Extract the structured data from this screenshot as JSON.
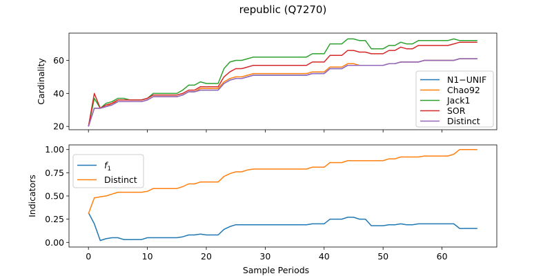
{
  "figure_title": "republic (Q7270)",
  "colors": {
    "blue": "#1f77b4",
    "orange": "#ff7f0e",
    "green": "#2ca02c",
    "red": "#d62728",
    "purple": "#9467bd"
  },
  "chart_data": [
    {
      "type": "line",
      "xlabel": "",
      "ylabel": "Cardinality",
      "xlim": [
        -3.3,
        69.3
      ],
      "ylim": [
        18,
        76.5
      ],
      "xticks": [
        0,
        10,
        20,
        30,
        40,
        50,
        60
      ],
      "yticks": [
        20,
        40,
        60
      ],
      "legend_position": "right",
      "x": [
        0,
        1,
        2,
        3,
        4,
        5,
        6,
        7,
        8,
        9,
        10,
        11,
        12,
        13,
        14,
        15,
        16,
        17,
        18,
        19,
        20,
        21,
        22,
        23,
        24,
        25,
        26,
        27,
        28,
        29,
        30,
        31,
        32,
        33,
        34,
        35,
        36,
        37,
        38,
        39,
        40,
        41,
        42,
        43,
        44,
        45,
        46,
        47,
        48,
        49,
        50,
        51,
        52,
        53,
        54,
        55,
        56,
        57,
        58,
        59,
        60,
        61,
        62,
        63,
        64,
        65,
        66
      ],
      "series": [
        {
          "name": "N1−UNIF",
          "color_key": "blue",
          "values": [
            20,
            31,
            31,
            32,
            33,
            35,
            35,
            35,
            35,
            35,
            36,
            38,
            38,
            38,
            38,
            38,
            39,
            41,
            41,
            42,
            42,
            42,
            42,
            46,
            48,
            49,
            49,
            50,
            51,
            51,
            51,
            51,
            51,
            51,
            51,
            51,
            51,
            51,
            52,
            52,
            52,
            55,
            55,
            55,
            57,
            57,
            57,
            57,
            57,
            57,
            57,
            58,
            58,
            59,
            59,
            59,
            59,
            60,
            60,
            60,
            60,
            60,
            60,
            61,
            61,
            61,
            61
          ]
        },
        {
          "name": "Chao92",
          "color_key": "orange",
          "values": [
            20,
            31,
            31,
            32,
            34,
            35,
            35,
            35,
            35,
            35,
            36,
            38,
            38,
            38,
            38,
            38,
            39,
            41,
            41,
            43,
            43,
            43,
            43,
            47,
            49,
            50,
            50,
            51,
            52,
            52,
            52,
            52,
            52,
            52,
            52,
            52,
            52,
            52,
            53,
            53,
            53,
            56,
            56,
            56,
            58,
            58,
            57,
            57,
            57,
            57,
            57,
            58,
            58,
            59,
            59,
            59,
            59,
            60,
            60,
            60,
            60,
            60,
            60,
            61,
            61,
            61,
            61
          ]
        },
        {
          "name": "Jack1",
          "color_key": "green",
          "values": [
            20,
            37,
            31,
            34,
            35,
            37,
            37,
            36,
            36,
            36,
            37,
            40,
            40,
            40,
            40,
            40,
            42,
            45,
            45,
            47,
            46,
            46,
            46,
            55,
            59,
            60,
            60,
            61,
            62,
            62,
            62,
            62,
            62,
            62,
            62,
            62,
            62,
            62,
            64,
            64,
            64,
            70,
            70,
            70,
            73,
            73,
            72,
            72,
            67,
            67,
            67,
            69,
            69,
            71,
            70,
            70,
            72,
            72,
            72,
            72,
            72,
            72,
            73,
            72,
            72,
            72,
            72
          ]
        },
        {
          "name": "SOR",
          "color_key": "red",
          "values": [
            20,
            40,
            31,
            33,
            34,
            36,
            36,
            36,
            36,
            36,
            37,
            39,
            39,
            39,
            39,
            39,
            40,
            42,
            42,
            44,
            44,
            44,
            44,
            50,
            53,
            55,
            55,
            56,
            57,
            57,
            57,
            57,
            57,
            57,
            57,
            57,
            57,
            57,
            59,
            59,
            59,
            63,
            63,
            63,
            66,
            66,
            65,
            65,
            64,
            64,
            64,
            66,
            66,
            68,
            67,
            67,
            69,
            69,
            69,
            69,
            69,
            69,
            70,
            71,
            71,
            71,
            71
          ]
        },
        {
          "name": "Distinct",
          "color_key": "purple",
          "values": [
            20,
            31,
            31,
            32,
            33,
            35,
            35,
            35,
            35,
            35,
            36,
            38,
            38,
            38,
            38,
            38,
            39,
            41,
            41,
            42,
            42,
            42,
            42,
            46,
            48,
            49,
            49,
            50,
            51,
            51,
            51,
            51,
            51,
            51,
            51,
            51,
            51,
            51,
            52,
            52,
            52,
            55,
            55,
            55,
            57,
            57,
            57,
            57,
            57,
            57,
            57,
            58,
            58,
            59,
            59,
            59,
            59,
            60,
            60,
            60,
            60,
            60,
            60,
            61,
            61,
            61,
            61
          ]
        }
      ]
    },
    {
      "type": "line",
      "xlabel": "Sample Periods",
      "ylabel": "Indicators",
      "xlim": [
        -3.3,
        69.3
      ],
      "ylim": [
        -0.05,
        1.05
      ],
      "xticks": [
        0,
        10,
        20,
        30,
        40,
        50,
        60
      ],
      "yticks": [
        0.0,
        0.25,
        0.5,
        0.75,
        1.0
      ],
      "ytick_labels": [
        "0.00",
        "0.25",
        "0.50",
        "0.75",
        "1.00"
      ],
      "xtick_labels": [
        "0",
        "10",
        "20",
        "30",
        "40",
        "50",
        "60"
      ],
      "legend_position": "top-left",
      "legend_f1_base": "f",
      "legend_f1_sub": "1",
      "x": [
        0,
        1,
        2,
        3,
        4,
        5,
        6,
        7,
        8,
        9,
        10,
        11,
        12,
        13,
        14,
        15,
        16,
        17,
        18,
        19,
        20,
        21,
        22,
        23,
        24,
        25,
        26,
        27,
        28,
        29,
        30,
        31,
        32,
        33,
        34,
        35,
        36,
        37,
        38,
        39,
        40,
        41,
        42,
        43,
        44,
        45,
        46,
        47,
        48,
        49,
        50,
        51,
        52,
        53,
        54,
        55,
        56,
        57,
        58,
        59,
        60,
        61,
        62,
        63,
        64,
        65,
        66
      ],
      "series": [
        {
          "name": "f_1",
          "color_key": "blue",
          "values": [
            0.32,
            0.2,
            0.02,
            0.04,
            0.05,
            0.05,
            0.03,
            0.03,
            0.03,
            0.03,
            0.05,
            0.05,
            0.05,
            0.05,
            0.05,
            0.05,
            0.06,
            0.08,
            0.08,
            0.09,
            0.08,
            0.08,
            0.08,
            0.14,
            0.17,
            0.19,
            0.19,
            0.19,
            0.19,
            0.19,
            0.19,
            0.19,
            0.19,
            0.19,
            0.19,
            0.19,
            0.19,
            0.19,
            0.2,
            0.2,
            0.2,
            0.25,
            0.25,
            0.25,
            0.27,
            0.27,
            0.25,
            0.25,
            0.18,
            0.18,
            0.18,
            0.19,
            0.19,
            0.2,
            0.19,
            0.19,
            0.2,
            0.2,
            0.2,
            0.2,
            0.2,
            0.2,
            0.2,
            0.15,
            0.15,
            0.15,
            0.15
          ]
        },
        {
          "name": "Distinct",
          "color_key": "orange",
          "values": [
            0.31,
            0.48,
            0.49,
            0.5,
            0.52,
            0.54,
            0.54,
            0.54,
            0.54,
            0.54,
            0.55,
            0.58,
            0.58,
            0.58,
            0.58,
            0.58,
            0.6,
            0.63,
            0.63,
            0.65,
            0.65,
            0.65,
            0.65,
            0.71,
            0.74,
            0.76,
            0.76,
            0.78,
            0.79,
            0.79,
            0.79,
            0.79,
            0.79,
            0.79,
            0.79,
            0.79,
            0.79,
            0.79,
            0.81,
            0.81,
            0.81,
            0.86,
            0.86,
            0.86,
            0.88,
            0.88,
            0.88,
            0.88,
            0.88,
            0.88,
            0.88,
            0.9,
            0.9,
            0.92,
            0.92,
            0.92,
            0.92,
            0.93,
            0.93,
            0.93,
            0.93,
            0.93,
            0.95,
            1.0,
            1.0,
            1.0,
            1.0
          ]
        }
      ]
    }
  ]
}
